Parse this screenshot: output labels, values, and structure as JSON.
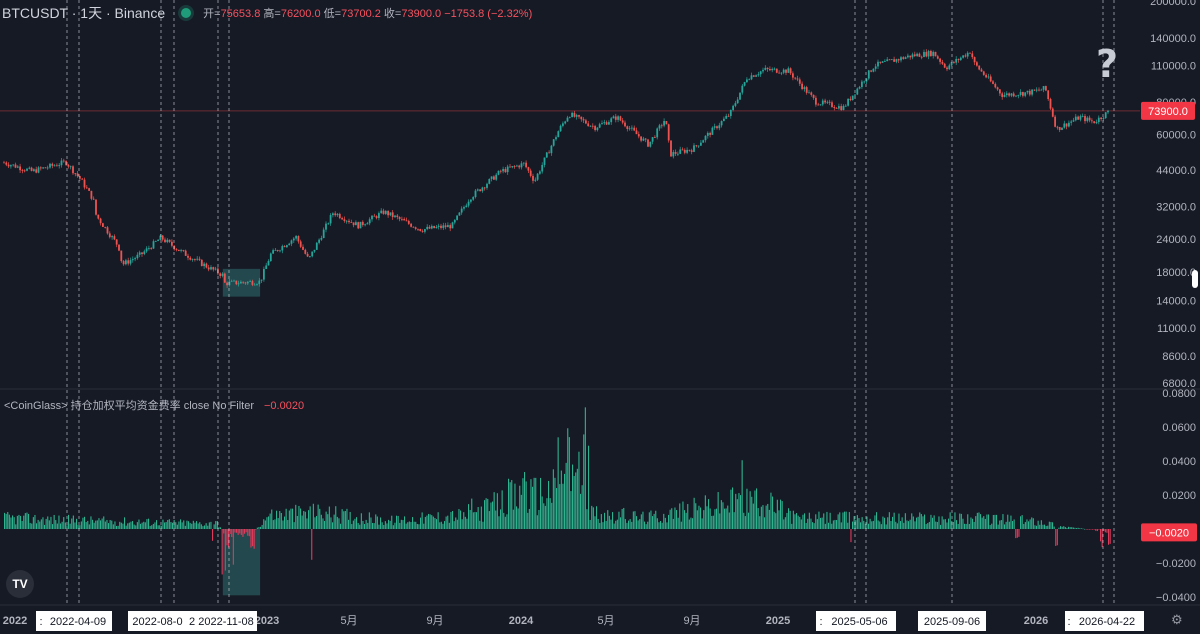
{
  "header": {
    "symbol": "BTCUSDT · 1天 · Binance",
    "open_label": "开=",
    "open": "75653.8",
    "high_label": "高=",
    "high": "76200.0",
    "low_label": "低=",
    "low": "73700.2",
    "close_label": "收=",
    "close": "73900.0",
    "change": "−1753.8 (−2.32%)"
  },
  "indicator": {
    "title": "<CoinGlass> 持仓加权平均资金费率 close No Filter",
    "value": "−0.0020"
  },
  "annotation": {
    "question_mark": "?"
  },
  "logo_text": "TV",
  "icons": {
    "logo": "tradingview-logo-icon",
    "settings": "gear-icon",
    "status": "status-dot-icon"
  },
  "colors": {
    "up": "#26a69a",
    "down": "#ef5350",
    "funding_pos": "#2fb38f",
    "funding_neg": "#e03a5b",
    "price_tag": "#f23645",
    "highlight": "#2f6f70",
    "background": "#161a25"
  },
  "chart_data": [
    {
      "type": "candlestick",
      "scale": "log",
      "y_ticks": [
        "6800.0",
        "8600.0",
        "11000.0",
        "14000.0",
        "18000.0",
        "24000.0",
        "32000.0",
        "44000.0",
        "60000.0",
        "80000.0",
        "110000.0",
        "140000.0",
        "200000.0"
      ],
      "current_price_label": "73900.0",
      "x_labels": [
        "2022",
        "5月",
        "9月",
        "2024",
        "5月",
        "9月",
        "2025",
        "5月",
        "9月",
        "2026",
        "2023"
      ],
      "close_path": [
        [
          "2022-01-01",
          47000
        ],
        [
          "2022-02-10",
          43500
        ],
        [
          "2022-03-30",
          47200
        ],
        [
          "2022-04-20",
          40500
        ],
        [
          "2022-05-08",
          34000
        ],
        [
          "2022-05-12",
          29500
        ],
        [
          "2022-06-13",
          22500
        ],
        [
          "2022-06-18",
          19200
        ],
        [
          "2022-07-15",
          21000
        ],
        [
          "2022-08-12",
          24300
        ],
        [
          "2022-09-10",
          21500
        ],
        [
          "2022-10-10",
          19300
        ],
        [
          "2022-11-08",
          17500
        ],
        [
          "2022-11-10",
          16300
        ],
        [
          "2022-12-31",
          16550
        ],
        [
          "2023-01-15",
          21000
        ],
        [
          "2023-02-20",
          24500
        ],
        [
          "2023-03-10",
          20000
        ],
        [
          "2023-04-14",
          30400
        ],
        [
          "2023-05-20",
          27000
        ],
        [
          "2023-06-25",
          30500
        ],
        [
          "2023-08-17",
          26100
        ],
        [
          "2023-09-30",
          27000
        ],
        [
          "2023-10-25",
          34500
        ],
        [
          "2023-12-08",
          43500
        ],
        [
          "2024-01-10",
          46500
        ],
        [
          "2024-01-25",
          40000
        ],
        [
          "2024-02-28",
          62000
        ],
        [
          "2024-03-14",
          72000
        ],
        [
          "2024-04-20",
          64000
        ],
        [
          "2024-05-21",
          70000
        ],
        [
          "2024-07-05",
          55000
        ],
        [
          "2024-07-29",
          69000
        ],
        [
          "2024-08-05",
          50500
        ],
        [
          "2024-09-06",
          53000
        ],
        [
          "2024-10-29",
          72000
        ],
        [
          "2024-11-22",
          99000
        ],
        [
          "2024-12-17",
          106000
        ],
        [
          "2025-01-20",
          105000
        ],
        [
          "2025-02-28",
          80000
        ],
        [
          "2025-04-08",
          76000
        ],
        [
          "2025-05-22",
          110000
        ],
        [
          "2025-07-14",
          120000
        ],
        [
          "2025-08-14",
          123000
        ],
        [
          "2025-09-01",
          108000
        ],
        [
          "2025-10-06",
          125000
        ],
        [
          "2025-10-11",
          112000
        ],
        [
          "2025-11-20",
          85000
        ],
        [
          "2025-12-31",
          87000
        ],
        [
          "2026-01-20",
          90000
        ],
        [
          "2026-02-05",
          63000
        ],
        [
          "2026-03-10",
          70000
        ],
        [
          "2026-03-30",
          67000
        ],
        [
          "2026-04-22",
          73900
        ]
      ],
      "highlight_box": {
        "x_start": "2022-11-08",
        "x_end": "2022-12-31",
        "y_low": 14500,
        "y_high": 18500
      },
      "current_price": 73900
    },
    {
      "type": "bar",
      "title": "<CoinGlass> 持仓加权平均资金费率 close No Filter",
      "y_ticks": [
        "0.0800",
        "0.0600",
        "0.0400",
        "0.0200",
        "−0.0200",
        "−0.0400"
      ],
      "ylim": [
        -0.04,
        0.08
      ],
      "current_value_label": "−0.0020",
      "baseline_envelope": [
        [
          "2022-01-01",
          0.008
        ],
        [
          "2022-05-01",
          0.006
        ],
        [
          "2022-11-01",
          0.004
        ],
        [
          "2022-11-12",
          -0.006
        ],
        [
          "2022-12-20",
          -0.003
        ],
        [
          "2023-01-10",
          0.01
        ],
        [
          "2023-03-20",
          0.012
        ],
        [
          "2023-07-01",
          0.006
        ],
        [
          "2023-10-20",
          0.01
        ],
        [
          "2023-12-15",
          0.02
        ],
        [
          "2024-02-20",
          0.028
        ],
        [
          "2024-03-15",
          0.04
        ],
        [
          "2024-04-10",
          0.012
        ],
        [
          "2024-07-01",
          0.008
        ],
        [
          "2024-11-10",
          0.02
        ],
        [
          "2024-12-15",
          0.02
        ],
        [
          "2025-02-01",
          0.008
        ],
        [
          "2025-06-01",
          0.008
        ],
        [
          "2025-10-01",
          0.008
        ],
        [
          "2026-01-10",
          0.006
        ],
        [
          "2026-02-10",
          0.002
        ],
        [
          "2026-04-22",
          -0.002
        ]
      ],
      "spikes": [
        [
          "2022-10-25",
          -0.01
        ],
        [
          "2022-11-09",
          -0.028
        ],
        [
          "2022-11-14",
          -0.012
        ],
        [
          "2022-11-25",
          -0.026
        ],
        [
          "2022-12-20",
          -0.012
        ],
        [
          "2023-03-15",
          -0.026
        ],
        [
          "2023-10-25",
          0.018
        ],
        [
          "2023-12-20",
          0.03
        ],
        [
          "2024-01-10",
          0.038
        ],
        [
          "2024-02-28",
          0.062
        ],
        [
          "2024-03-05",
          0.04
        ],
        [
          "2024-03-13",
          0.065
        ],
        [
          "2024-03-20",
          0.042
        ],
        [
          "2024-03-26",
          0.053
        ],
        [
          "2024-04-02",
          0.061
        ],
        [
          "2024-04-08",
          0.072
        ],
        [
          "2024-11-12",
          0.047
        ],
        [
          "2024-11-20",
          0.032
        ],
        [
          "2024-12-05",
          0.024
        ],
        [
          "2025-04-20",
          -0.008
        ],
        [
          "2025-12-10",
          -0.006
        ],
        [
          "2026-02-06",
          -0.012
        ],
        [
          "2026-04-10",
          -0.011
        ],
        [
          "2026-04-20",
          -0.013
        ]
      ],
      "highlight_box": {
        "x_start": "2022-11-08",
        "x_end": "2022-12-31",
        "y_low": -0.039,
        "y_high": 0.0
      }
    }
  ],
  "markers": [
    {
      "label": "2022-04-09",
      "date": "2022-04-09"
    },
    {
      "label": "2022-08-0",
      "date": "2022-08-04"
    },
    {
      "label": "2022-11-08",
      "date": "2022-11-08"
    },
    {
      "label": "2025-05-06",
      "date": "2025-05-06"
    },
    {
      "label": "2025-09-06",
      "date": "2025-09-06"
    },
    {
      "label": "2026-04-22",
      "date": "2026-04-22"
    }
  ],
  "clipped_labels": [
    ":",
    "2",
    ":",
    "2",
    ":"
  ]
}
